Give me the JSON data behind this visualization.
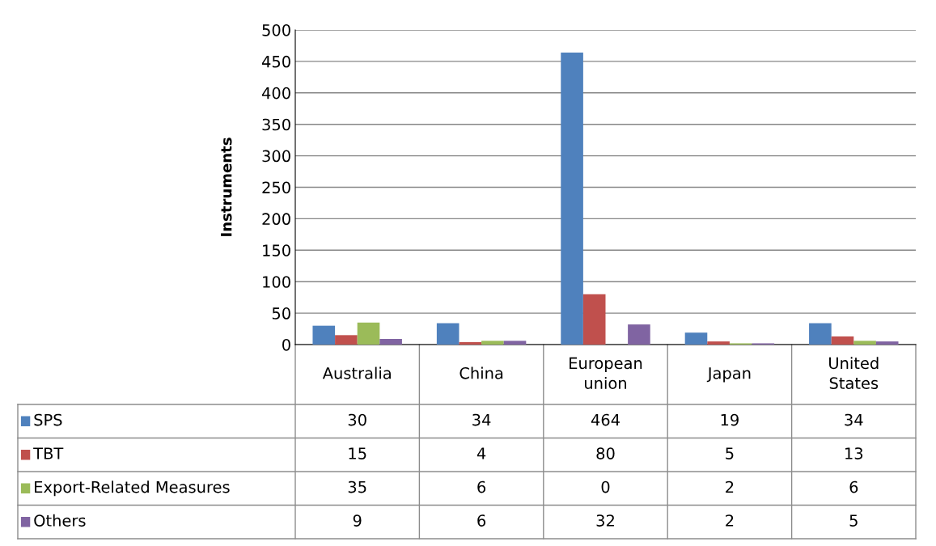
{
  "chart_data": {
    "type": "bar",
    "ylabel": "Instruments",
    "categories": [
      "Australia",
      "China",
      "European union",
      "Japan",
      "United States"
    ],
    "series": [
      {
        "name": "SPS",
        "color": "#4f81bd",
        "values": [
          30,
          34,
          464,
          19,
          34
        ]
      },
      {
        "name": "TBT",
        "color": "#c0504d",
        "values": [
          15,
          4,
          80,
          5,
          13
        ]
      },
      {
        "name": "Export-Related Measures",
        "color": "#9bbb59",
        "values": [
          35,
          6,
          0,
          2,
          6
        ]
      },
      {
        "name": "Others",
        "color": "#8064a2",
        "values": [
          9,
          6,
          32,
          2,
          5
        ]
      }
    ],
    "ylim": [
      0,
      500
    ],
    "yticks": [
      0,
      50,
      100,
      150,
      200,
      250,
      300,
      350,
      400,
      450,
      500
    ],
    "grid": "y",
    "data_labels": true,
    "legend": "bottom left"
  }
}
